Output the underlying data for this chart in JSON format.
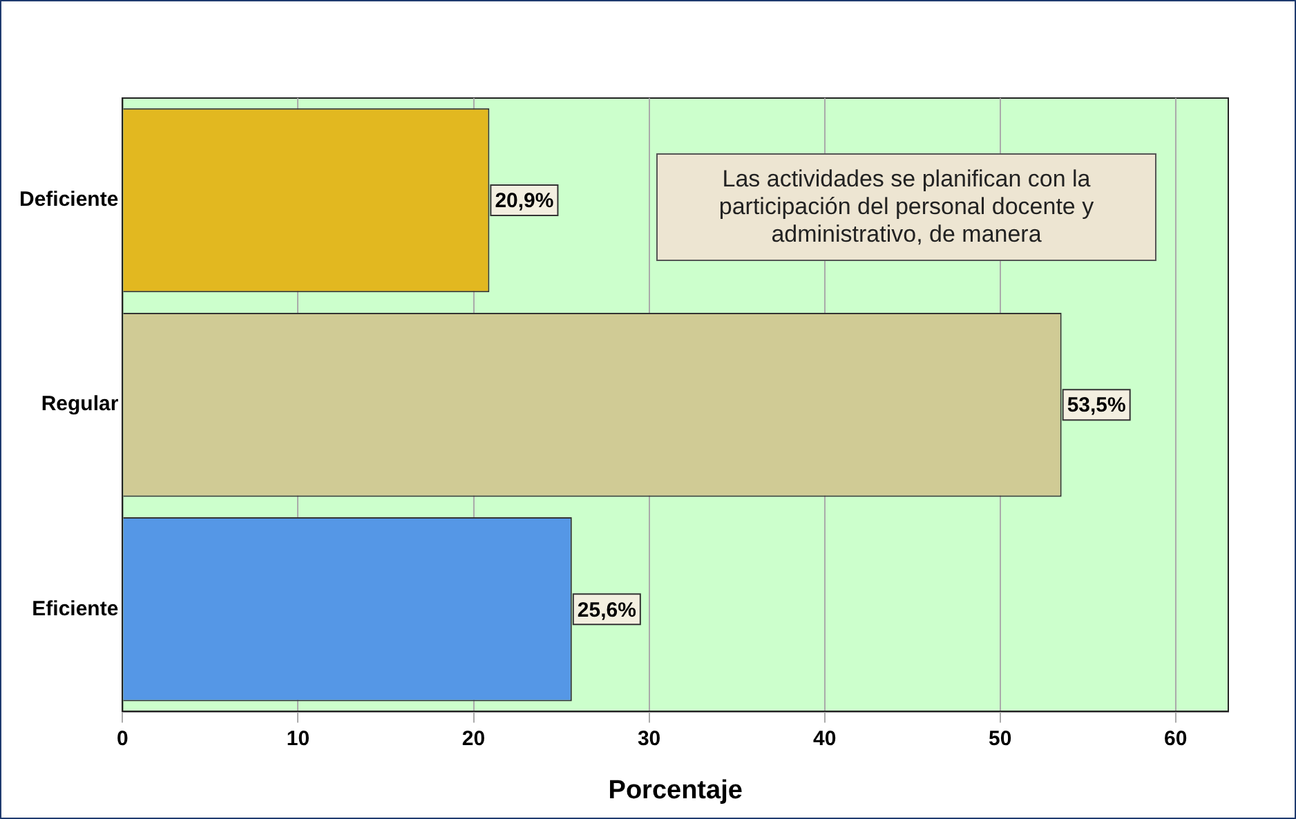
{
  "chart_data": {
    "type": "bar",
    "orientation": "horizontal",
    "xlabel": "Porcentaje",
    "categories": [
      "Deficiente",
      "Regular",
      "Eficiente"
    ],
    "values": [
      20.9,
      53.5,
      25.6
    ],
    "colors": [
      "#e2b820",
      "#d0cb95",
      "#5597e6"
    ],
    "value_labels": [
      "20,9%",
      "53,5%",
      "25,6%"
    ],
    "xlim": [
      0,
      63
    ],
    "xticks": [
      0,
      10,
      20,
      30,
      40,
      50,
      60
    ],
    "grid": "x",
    "annotations": [
      "Las actividades se planifican con la participación del personal docente y administrativo, de manera"
    ]
  }
}
